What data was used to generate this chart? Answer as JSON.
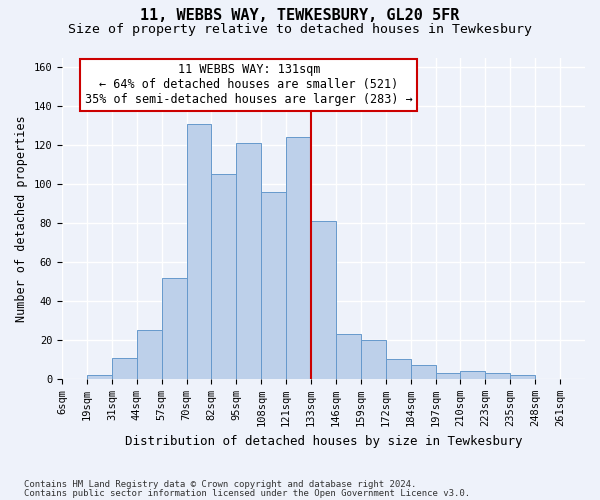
{
  "title1": "11, WEBBS WAY, TEWKESBURY, GL20 5FR",
  "title2": "Size of property relative to detached houses in Tewkesbury",
  "xlabel": "Distribution of detached houses by size in Tewkesbury",
  "ylabel": "Number of detached properties",
  "footnote1": "Contains HM Land Registry data © Crown copyright and database right 2024.",
  "footnote2": "Contains public sector information licensed under the Open Government Licence v3.0.",
  "annotation_title": "11 WEBBS WAY: 131sqm",
  "annotation_line1": "← 64% of detached houses are smaller (521)",
  "annotation_line2": "35% of semi-detached houses are larger (283) →",
  "bar_labels": [
    "6sqm",
    "19sqm",
    "31sqm",
    "44sqm",
    "57sqm",
    "70sqm",
    "82sqm",
    "95sqm",
    "108sqm",
    "121sqm",
    "133sqm",
    "146sqm",
    "159sqm",
    "172sqm",
    "184sqm",
    "197sqm",
    "210sqm",
    "223sqm",
    "235sqm",
    "248sqm",
    "261sqm"
  ],
  "bar_values": [
    0,
    2,
    11,
    25,
    52,
    131,
    105,
    121,
    96,
    124,
    81,
    23,
    20,
    10,
    7,
    3,
    4,
    3,
    2,
    0
  ],
  "bar_color": "#bdd0ea",
  "bar_edge_color": "#6699cc",
  "marker_color": "#cc0000",
  "ylim": [
    0,
    165
  ],
  "yticks": [
    0,
    20,
    40,
    60,
    80,
    100,
    120,
    140,
    160
  ],
  "background_color": "#eef2fa",
  "grid_color": "#ffffff",
  "title1_fontsize": 11,
  "title2_fontsize": 9.5,
  "xlabel_fontsize": 9,
  "ylabel_fontsize": 8.5,
  "tick_fontsize": 7.5,
  "annotation_fontsize": 8.5,
  "footnote_fontsize": 6.5
}
